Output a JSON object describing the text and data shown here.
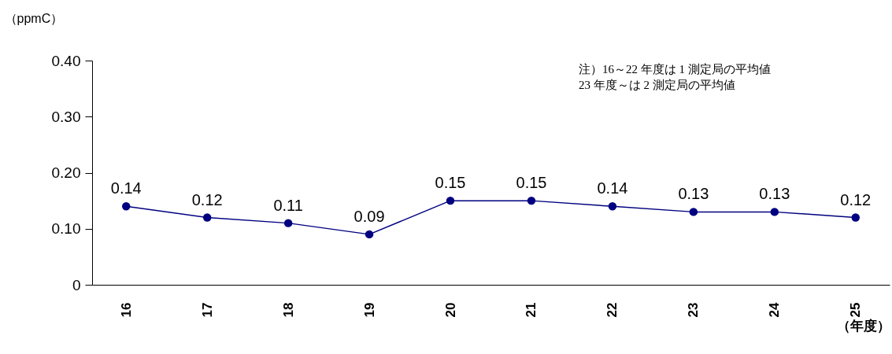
{
  "chart_data": {
    "type": "line",
    "ylabel": "（ppmC）",
    "xlabel": "（年度）",
    "categories": [
      "16",
      "17",
      "18",
      "19",
      "20",
      "21",
      "22",
      "23",
      "24",
      "25"
    ],
    "series": [
      {
        "color": "#000080",
        "values": [
          0.14,
          0.12,
          0.11,
          0.09,
          0.15,
          0.15,
          0.14,
          0.13,
          0.13,
          0.12
        ]
      }
    ],
    "ylim": [
      0,
      0.4
    ],
    "yticks": [
      0,
      {
        "value": 0.1,
        "label": "0.10"
      },
      {
        "value": 0.2,
        "label": "0.20"
      },
      {
        "value": 0.3,
        "label": "0.30"
      },
      {
        "value": 0.4,
        "label": "0.40"
      }
    ],
    "data_labels": true,
    "marker": "circle",
    "grid": false,
    "legend": false,
    "annotations": [
      "注）16～22 年度は 1 測定局の平均値\n　 23 年度～は 2 測定局の平均値"
    ]
  }
}
